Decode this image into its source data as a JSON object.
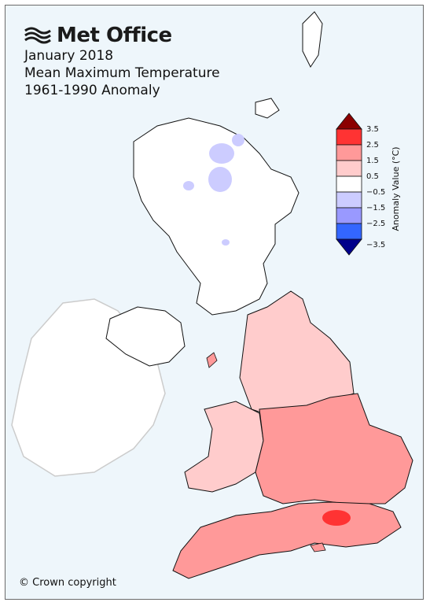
{
  "logo": {
    "text": "Met Office"
  },
  "title": {
    "line1": "January 2018",
    "line2": "Mean Maximum Temperature",
    "line3": "1961-1990 Anomaly"
  },
  "legend": {
    "label": "Anomaly Value (°C)",
    "ticks": [
      "3.5",
      "2.5",
      "1.5",
      "0.5",
      "−0.5",
      "−1.5",
      "−2.5",
      "−3.5"
    ],
    "colors": [
      "#8b0000",
      "#ff3333",
      "#ff9999",
      "#ffcccc",
      "#ffffff",
      "#ccccff",
      "#9999ff",
      "#3366ff",
      "#00008b"
    ]
  },
  "copyright": "© Crown copyright"
}
